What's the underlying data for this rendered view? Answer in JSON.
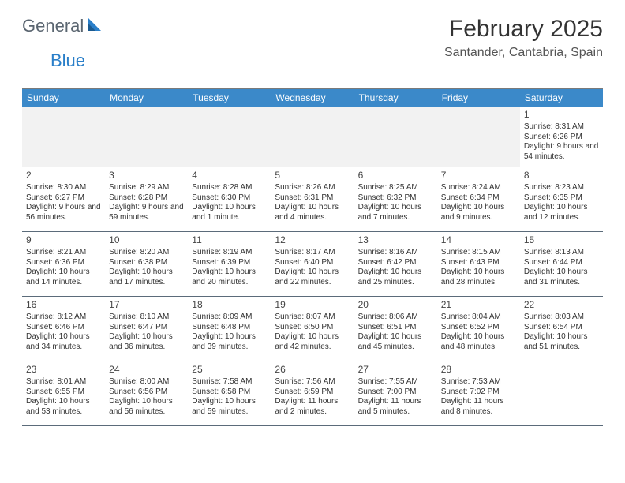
{
  "logo": {
    "text1": "General",
    "text2": "Blue"
  },
  "title": "February 2025",
  "location": "Santander, Cantabria, Spain",
  "colors": {
    "header_bg": "#3b89c9",
    "header_fg": "#ffffff",
    "logo_gray": "#5a6570",
    "logo_blue": "#2a7fc9",
    "rule": "#5b6b7a",
    "empty_bg": "#f2f2f2"
  },
  "weekdays": [
    "Sunday",
    "Monday",
    "Tuesday",
    "Wednesday",
    "Thursday",
    "Friday",
    "Saturday"
  ],
  "weeks": [
    [
      null,
      null,
      null,
      null,
      null,
      null,
      {
        "n": "1",
        "sr": "Sunrise: 8:31 AM",
        "ss": "Sunset: 6:26 PM",
        "dl": "Daylight: 9 hours and 54 minutes."
      }
    ],
    [
      {
        "n": "2",
        "sr": "Sunrise: 8:30 AM",
        "ss": "Sunset: 6:27 PM",
        "dl": "Daylight: 9 hours and 56 minutes."
      },
      {
        "n": "3",
        "sr": "Sunrise: 8:29 AM",
        "ss": "Sunset: 6:28 PM",
        "dl": "Daylight: 9 hours and 59 minutes."
      },
      {
        "n": "4",
        "sr": "Sunrise: 8:28 AM",
        "ss": "Sunset: 6:30 PM",
        "dl": "Daylight: 10 hours and 1 minute."
      },
      {
        "n": "5",
        "sr": "Sunrise: 8:26 AM",
        "ss": "Sunset: 6:31 PM",
        "dl": "Daylight: 10 hours and 4 minutes."
      },
      {
        "n": "6",
        "sr": "Sunrise: 8:25 AM",
        "ss": "Sunset: 6:32 PM",
        "dl": "Daylight: 10 hours and 7 minutes."
      },
      {
        "n": "7",
        "sr": "Sunrise: 8:24 AM",
        "ss": "Sunset: 6:34 PM",
        "dl": "Daylight: 10 hours and 9 minutes."
      },
      {
        "n": "8",
        "sr": "Sunrise: 8:23 AM",
        "ss": "Sunset: 6:35 PM",
        "dl": "Daylight: 10 hours and 12 minutes."
      }
    ],
    [
      {
        "n": "9",
        "sr": "Sunrise: 8:21 AM",
        "ss": "Sunset: 6:36 PM",
        "dl": "Daylight: 10 hours and 14 minutes."
      },
      {
        "n": "10",
        "sr": "Sunrise: 8:20 AM",
        "ss": "Sunset: 6:38 PM",
        "dl": "Daylight: 10 hours and 17 minutes."
      },
      {
        "n": "11",
        "sr": "Sunrise: 8:19 AM",
        "ss": "Sunset: 6:39 PM",
        "dl": "Daylight: 10 hours and 20 minutes."
      },
      {
        "n": "12",
        "sr": "Sunrise: 8:17 AM",
        "ss": "Sunset: 6:40 PM",
        "dl": "Daylight: 10 hours and 22 minutes."
      },
      {
        "n": "13",
        "sr": "Sunrise: 8:16 AM",
        "ss": "Sunset: 6:42 PM",
        "dl": "Daylight: 10 hours and 25 minutes."
      },
      {
        "n": "14",
        "sr": "Sunrise: 8:15 AM",
        "ss": "Sunset: 6:43 PM",
        "dl": "Daylight: 10 hours and 28 minutes."
      },
      {
        "n": "15",
        "sr": "Sunrise: 8:13 AM",
        "ss": "Sunset: 6:44 PM",
        "dl": "Daylight: 10 hours and 31 minutes."
      }
    ],
    [
      {
        "n": "16",
        "sr": "Sunrise: 8:12 AM",
        "ss": "Sunset: 6:46 PM",
        "dl": "Daylight: 10 hours and 34 minutes."
      },
      {
        "n": "17",
        "sr": "Sunrise: 8:10 AM",
        "ss": "Sunset: 6:47 PM",
        "dl": "Daylight: 10 hours and 36 minutes."
      },
      {
        "n": "18",
        "sr": "Sunrise: 8:09 AM",
        "ss": "Sunset: 6:48 PM",
        "dl": "Daylight: 10 hours and 39 minutes."
      },
      {
        "n": "19",
        "sr": "Sunrise: 8:07 AM",
        "ss": "Sunset: 6:50 PM",
        "dl": "Daylight: 10 hours and 42 minutes."
      },
      {
        "n": "20",
        "sr": "Sunrise: 8:06 AM",
        "ss": "Sunset: 6:51 PM",
        "dl": "Daylight: 10 hours and 45 minutes."
      },
      {
        "n": "21",
        "sr": "Sunrise: 8:04 AM",
        "ss": "Sunset: 6:52 PM",
        "dl": "Daylight: 10 hours and 48 minutes."
      },
      {
        "n": "22",
        "sr": "Sunrise: 8:03 AM",
        "ss": "Sunset: 6:54 PM",
        "dl": "Daylight: 10 hours and 51 minutes."
      }
    ],
    [
      {
        "n": "23",
        "sr": "Sunrise: 8:01 AM",
        "ss": "Sunset: 6:55 PM",
        "dl": "Daylight: 10 hours and 53 minutes."
      },
      {
        "n": "24",
        "sr": "Sunrise: 8:00 AM",
        "ss": "Sunset: 6:56 PM",
        "dl": "Daylight: 10 hours and 56 minutes."
      },
      {
        "n": "25",
        "sr": "Sunrise: 7:58 AM",
        "ss": "Sunset: 6:58 PM",
        "dl": "Daylight: 10 hours and 59 minutes."
      },
      {
        "n": "26",
        "sr": "Sunrise: 7:56 AM",
        "ss": "Sunset: 6:59 PM",
        "dl": "Daylight: 11 hours and 2 minutes."
      },
      {
        "n": "27",
        "sr": "Sunrise: 7:55 AM",
        "ss": "Sunset: 7:00 PM",
        "dl": "Daylight: 11 hours and 5 minutes."
      },
      {
        "n": "28",
        "sr": "Sunrise: 7:53 AM",
        "ss": "Sunset: 7:02 PM",
        "dl": "Daylight: 11 hours and 8 minutes."
      },
      null
    ]
  ]
}
